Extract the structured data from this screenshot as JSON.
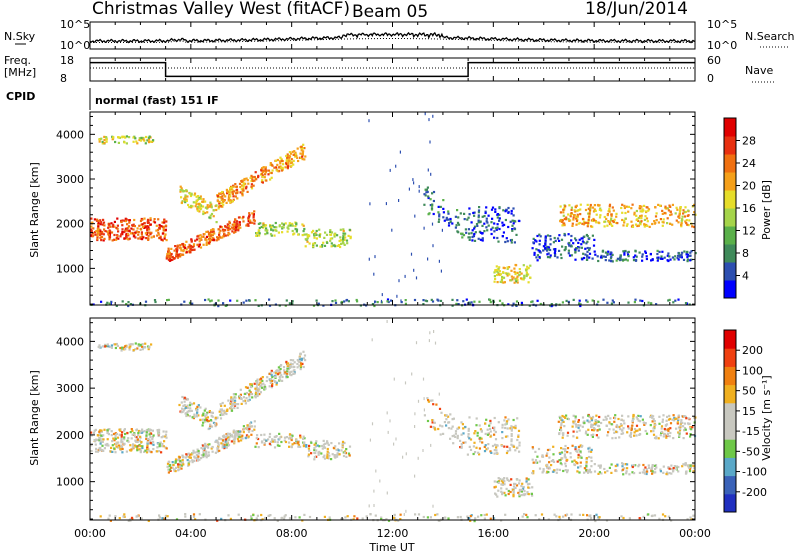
{
  "header": {
    "station": "Christmas Valley West (fitACF)",
    "beam": "Beam 05",
    "date": "18/Jun/2014"
  },
  "panels": {
    "nsky_label": "N.Sky",
    "nsearch_label": "N.Search",
    "noise_ticks_left": [
      "10^5",
      "10^0"
    ],
    "noise_ticks_right": [
      "10^5",
      "10^0"
    ],
    "freq_label_line1": "Freq.",
    "freq_label_line2": "[MHz]",
    "freq_ticks": [
      "18",
      "8"
    ],
    "nave_label": "Nave",
    "nave_ticks": [
      "60",
      "0"
    ],
    "cpid_label": "CPID",
    "cpid_text": "normal (fast) 151 IF"
  },
  "power_colorbar": {
    "label": "Power [dB]",
    "ticks": [
      "28",
      "24",
      "20",
      "16",
      "12",
      "8",
      "4"
    ],
    "colors": [
      "#0000ff",
      "#2d4fb0",
      "#3f8a5a",
      "#5ab04a",
      "#a5d44a",
      "#e6dd2a",
      "#f5a01a",
      "#f07010",
      "#e83010",
      "#e00000"
    ]
  },
  "velocity_colorbar": {
    "label": "Velocity [m s⁻¹]",
    "ticks": [
      "200",
      "100",
      "50",
      "15",
      "-15",
      "-50",
      "-100",
      "-200"
    ],
    "colors": [
      "#2030c0",
      "#3a62b8",
      "#5aa8c8",
      "#6ec848",
      "#c8c8c0",
      "#c8c8c0",
      "#f0b020",
      "#f08010",
      "#f04010",
      "#e00000"
    ]
  },
  "x_axis": {
    "label": "Time UT",
    "ticks": [
      "00:00",
      "04:00",
      "08:00",
      "12:00",
      "16:00",
      "20:00",
      "00:00"
    ]
  },
  "y_axis": {
    "label": "Slant Range [km]",
    "ticks": [
      "1000",
      "2000",
      "3000",
      "4000"
    ]
  },
  "chart_data": [
    {
      "type": "line",
      "panel": "noise",
      "series": [
        {
          "name": "N.Sky",
          "style": "solid"
        },
        {
          "name": "N.Search",
          "style": "dotted"
        }
      ],
      "yscale": "log",
      "ylim": [
        1,
        100000
      ]
    },
    {
      "type": "line",
      "panel": "frequency/nave",
      "x": [
        0,
        3,
        3,
        15,
        15,
        24
      ],
      "freq_mhz": [
        16,
        16,
        10,
        10,
        16,
        16
      ],
      "ylim_freq": [
        8,
        18
      ],
      "ylim_nave": [
        0,
        60
      ]
    },
    {
      "type": "heatmap",
      "panel": "power",
      "units": "dB",
      "xlim_hours": [
        0,
        24
      ],
      "ylim_km": [
        180,
        4500
      ],
      "clim": [
        0,
        30
      ]
    },
    {
      "type": "heatmap",
      "panel": "velocity",
      "units": "m/s",
      "xlim_hours": [
        0,
        24
      ],
      "ylim_km": [
        180,
        4500
      ],
      "clim": [
        -250,
        250
      ]
    }
  ]
}
